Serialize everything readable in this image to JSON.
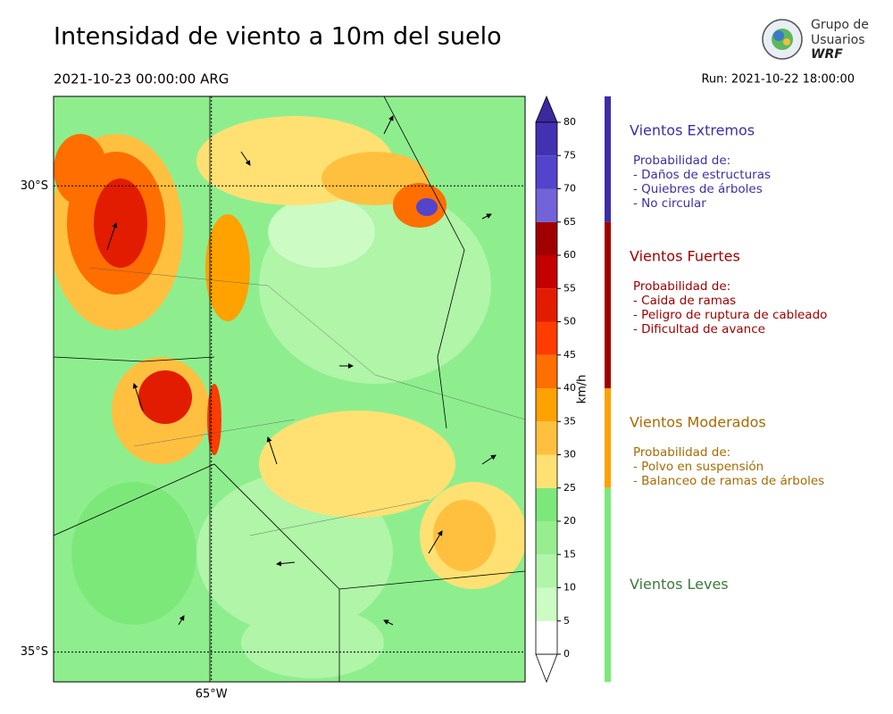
{
  "header": {
    "title": "Intensidad de viento a 10m del suelo",
    "valid_time": "2021-10-23 00:00:00 ARG",
    "run": "Run: 2021-10-22 18:00:00",
    "logo": [
      "Grupo de",
      "Usuarios",
      "WRF"
    ]
  },
  "map": {
    "xlim": [
      -66.69,
      -61.64
    ],
    "ylim": [
      -35.32,
      -29.04
    ],
    "lat_lines": [
      {
        "value": -30,
        "label": "30°S"
      },
      {
        "value": -35,
        "label": "35°S"
      }
    ],
    "lon_lines": [
      {
        "value": -65,
        "label": "65°W"
      }
    ]
  },
  "colorbar": {
    "label": "km/h",
    "lim": [
      0,
      80
    ],
    "ticks": [
      0,
      5,
      10,
      15,
      20,
      25,
      30,
      35,
      40,
      45,
      50,
      55,
      60,
      65,
      70,
      75,
      80
    ],
    "colors": [
      "#ffffff",
      "#ccfcc4",
      "#b0f5a8",
      "#96ee8e",
      "#7ce87a",
      "#ffe173",
      "#ffc040",
      "#ffa200",
      "#ff6e00",
      "#ff3c00",
      "#e21c00",
      "#c40000",
      "#a00000",
      "#7263d8",
      "#5444cc",
      "#4232b2"
    ],
    "over_color": "#3a2a9e",
    "under_color": "#ffffff"
  },
  "legend": [
    {
      "title": "Vientos Extremos",
      "lines": [
        "Probabilidad de:",
        "- Daños de estructuras",
        "- Quiebres de árboles",
        "- No circular"
      ],
      "color": "#3d2ea6",
      "from": 65,
      "to": 80
    },
    {
      "title": "Vientos Fuertes",
      "lines": [
        "Probabilidad de:",
        "- Caida de ramas",
        "- Peligro de ruptura de cableado",
        "- Dificultad de avance"
      ],
      "color": "#a00000",
      "from": 40,
      "to": 65
    },
    {
      "title": "Vientos Moderados",
      "lines": [
        "Probabilidad de:",
        "- Polvo en suspensión",
        "- Balanceo de ramas de árboles"
      ],
      "color": "#ffa000",
      "text_color": "#a86a00",
      "from": 25,
      "to": 40
    },
    {
      "title": "Vientos Leves",
      "lines": [],
      "color": "#7ce87a",
      "text_color": "#3a7a3a",
      "from": 0,
      "to": 25
    }
  ]
}
